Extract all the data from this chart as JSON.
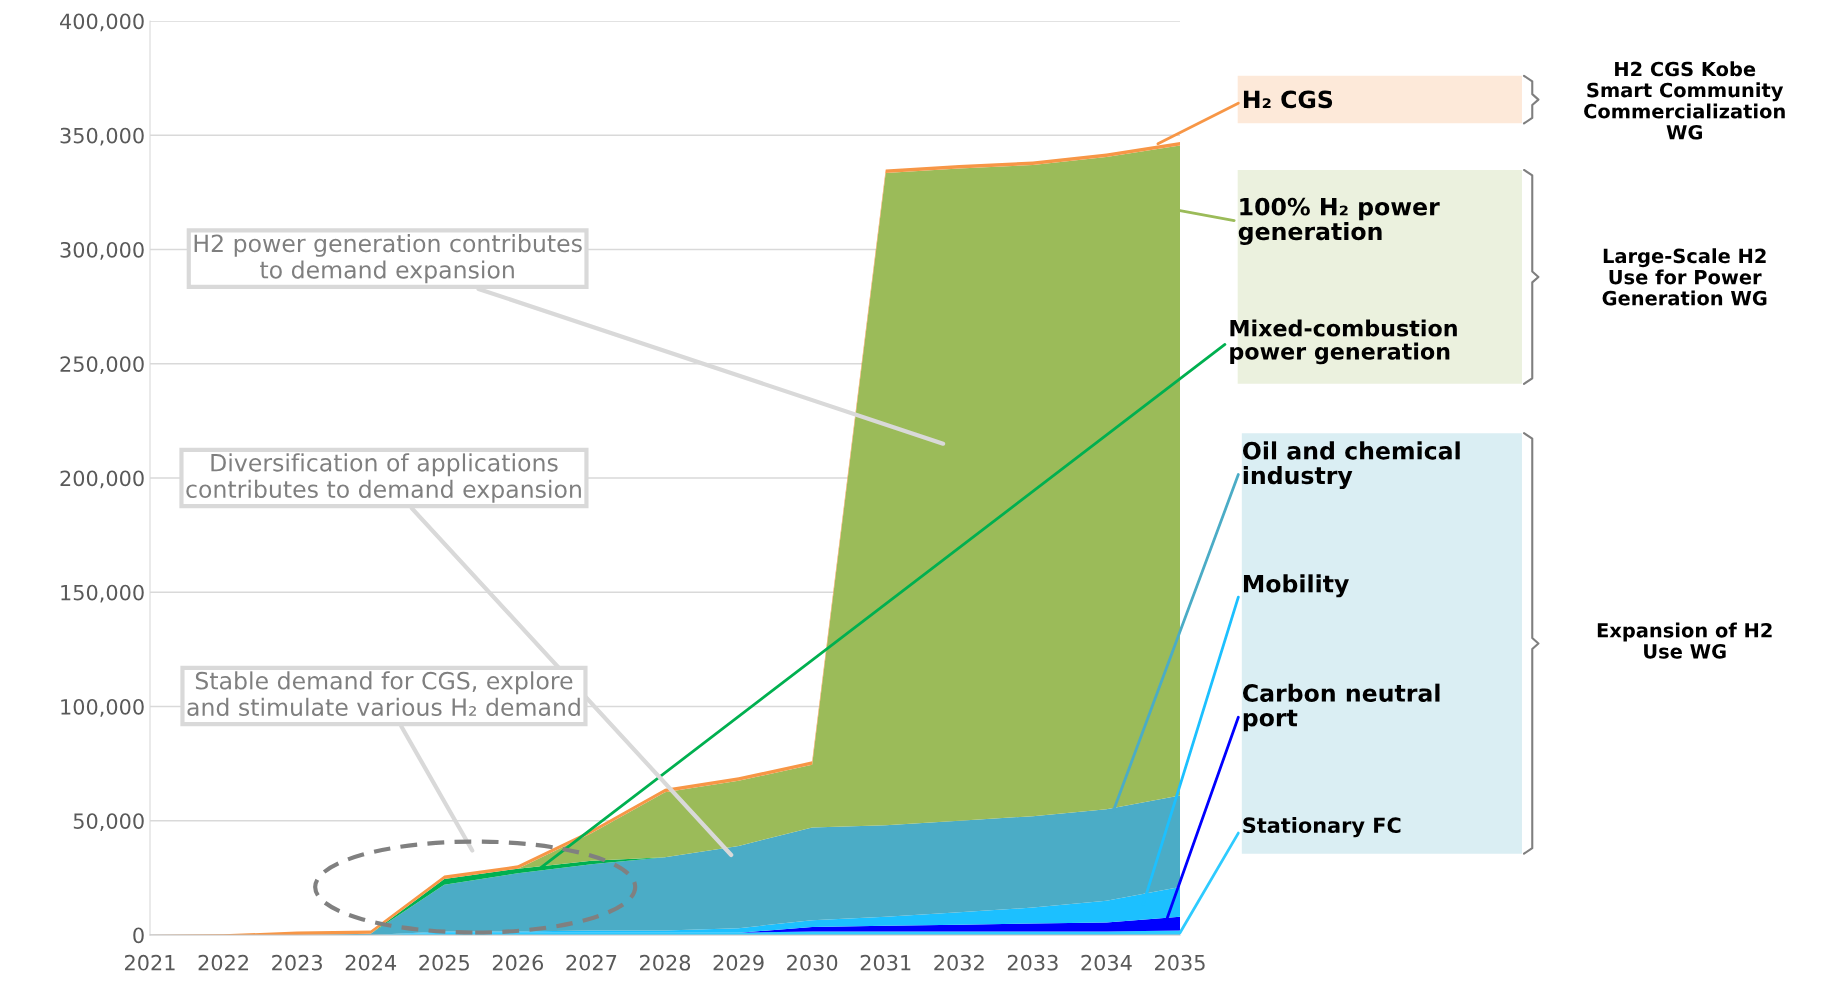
{
  "chart_data": {
    "type": "area",
    "stacked": true,
    "x": [
      2021,
      2022,
      2023,
      2024,
      2025,
      2026,
      2027,
      2028,
      2029,
      2030,
      2031,
      2032,
      2033,
      2034,
      2035
    ],
    "xlim": [
      2021,
      2035
    ],
    "xticks": [
      2021,
      2022,
      2023,
      2024,
      2025,
      2026,
      2027,
      2028,
      2029,
      2030,
      2031,
      2032,
      2033,
      2034,
      2035
    ],
    "ylim": [
      0,
      400000
    ],
    "yticks": [
      {
        "value": 0,
        "label": "0"
      },
      {
        "value": 50000,
        "label": "50,000"
      },
      {
        "value": 100000,
        "label": "100,000"
      },
      {
        "value": 150000,
        "label": "150,000"
      },
      {
        "value": 200000,
        "label": "200,000"
      },
      {
        "value": 250000,
        "label": "250,000"
      },
      {
        "value": 300000,
        "label": "300,000"
      },
      {
        "value": 350000,
        "label": "350,000"
      },
      {
        "value": 400000,
        "label": "400,000"
      }
    ],
    "grid": "y",
    "series": [
      {
        "name": "Stationary FC",
        "color": "#2ecbff",
        "values": [
          0,
          0,
          0,
          0,
          1000,
          1000,
          1000,
          1000,
          1000,
          1500,
          1500,
          1500,
          1500,
          1500,
          2000
        ]
      },
      {
        "name": "Carbon neutral\nport",
        "color": "#0000ff",
        "values": [
          0,
          0,
          0,
          0,
          0,
          0,
          0,
          0,
          0,
          2000,
          2500,
          3000,
          3500,
          4000,
          6000
        ]
      },
      {
        "name": "Mobility",
        "color": "#1cc0ff",
        "values": [
          0,
          0,
          0,
          0,
          500,
          500,
          1000,
          1000,
          2000,
          3000,
          4000,
          5500,
          7000,
          9500,
          13000
        ]
      },
      {
        "name": "Oil and chemical\nindustry",
        "color": "#4bacc6",
        "values": [
          0,
          0,
          0,
          500,
          20500,
          25500,
          29000,
          32000,
          36000,
          40500,
          40000,
          40000,
          40000,
          40000,
          40000
        ]
      },
      {
        "name": "Mixed-combustion\npower generation",
        "color": "#00b050",
        "values": [
          null,
          null,
          null,
          0,
          2500,
          2000,
          1500,
          0,
          null,
          null,
          null,
          null,
          null,
          null,
          null
        ]
      },
      {
        "name": "100% H₂ power\ngeneration",
        "color": "#9bbb59",
        "values": [
          0,
          0,
          0,
          0,
          0,
          0,
          12000,
          28500,
          28500,
          27500,
          285500,
          285500,
          285000,
          285500,
          284500
        ]
      },
      {
        "name": "H₂ CGS",
        "color": "#f79646",
        "values": [
          0,
          300,
          1500,
          1500,
          1500,
          1500,
          1500,
          1500,
          1500,
          1500,
          1500,
          1500,
          1500,
          1500,
          1500
        ]
      }
    ],
    "annotations": [
      "H2 power generation contributes\nto demand expansion",
      "Diversification of applications\ncontributes to demand expansion",
      "Stable demand for CGS, explore\nand stimulate various H₂ demand",
      "H2 CGS Kobe\nSmart Community\nCommercialization\nWG",
      "Large-Scale H2\nUse for Power\nGeneration WG",
      "Expansion of H2\nUse WG"
    ]
  }
}
